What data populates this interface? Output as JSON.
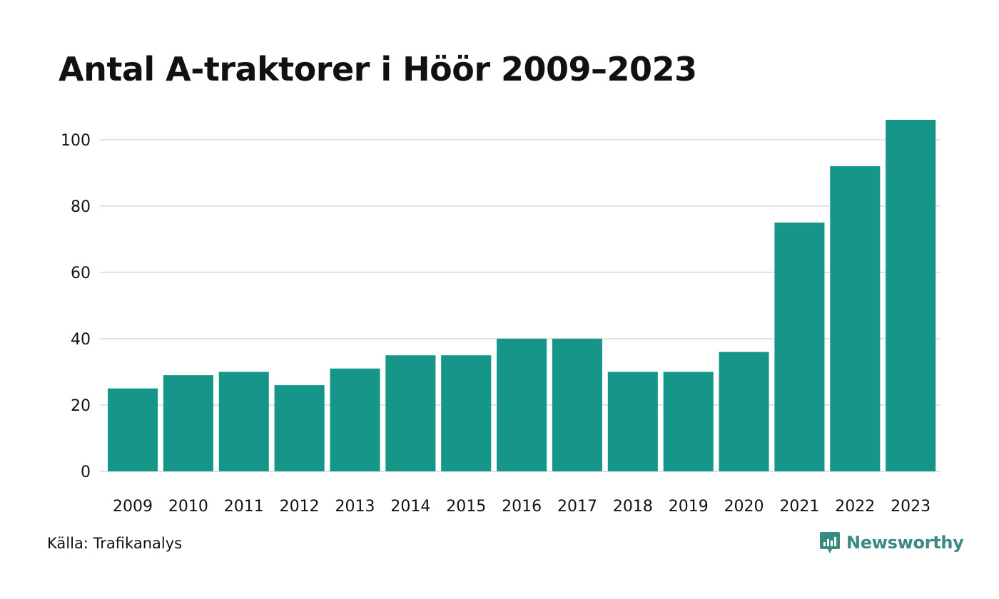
{
  "header": {
    "title": "Antal A-traktorer i Höör 2009–2023"
  },
  "footer": {
    "source": "Källa: Trafikanalys",
    "brand": "Newsworthy"
  },
  "colors": {
    "bar": "#159688",
    "grid": "#e3e3e3",
    "brand": "#3a8a80"
  },
  "chart_data": {
    "type": "bar",
    "title": "Antal A-traktorer i Höör 2009–2023",
    "xlabel": "",
    "ylabel": "",
    "categories": [
      "2009",
      "2010",
      "2011",
      "2012",
      "2013",
      "2014",
      "2015",
      "2016",
      "2017",
      "2018",
      "2019",
      "2020",
      "2021",
      "2022",
      "2023"
    ],
    "values": [
      25,
      29,
      30,
      26,
      31,
      35,
      35,
      40,
      40,
      30,
      30,
      36,
      75,
      92,
      106
    ],
    "ylim": [
      0,
      106
    ],
    "yticks": [
      0,
      20,
      40,
      60,
      80,
      100
    ],
    "grid": true
  }
}
